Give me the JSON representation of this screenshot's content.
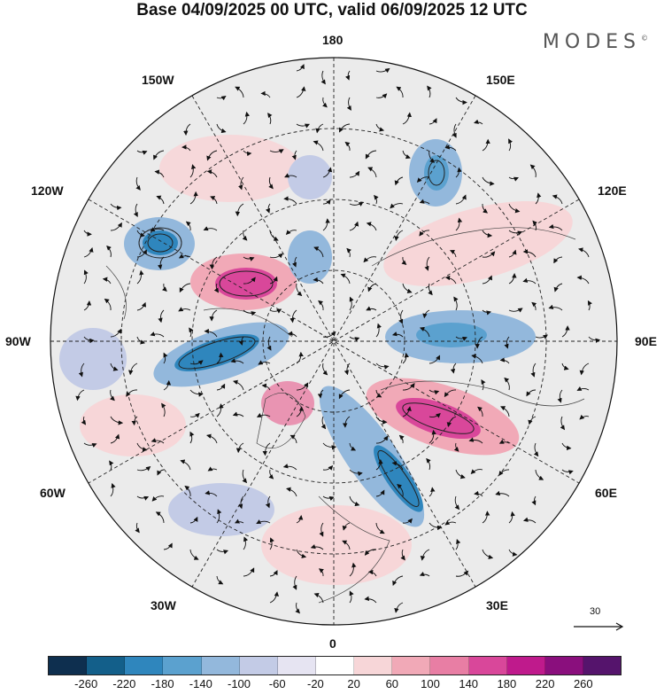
{
  "title": "Base 04/09/2025 00 UTC, valid 06/09/2025 12 UTC",
  "brand": "MODES",
  "brand_mark": "©",
  "longitude_labels": {
    "n180": "180",
    "w150": "150W",
    "e150": "150E",
    "w120": "120W",
    "e120": "120E",
    "w90": "90W",
    "e90": "90E",
    "w60": "60W",
    "e60": "60E",
    "w30": "30W",
    "e30": "30E",
    "s0": "0"
  },
  "reference_vector": {
    "value": "30"
  },
  "colorbar": {
    "ticks": [
      "-260",
      "-220",
      "-180",
      "-140",
      "-100",
      "-60",
      "-20",
      "20",
      "60",
      "100",
      "140",
      "180",
      "220",
      "260"
    ],
    "colors": [
      "#0e2f4f",
      "#135f8a",
      "#2f86bd",
      "#5ba1cf",
      "#93b8dc",
      "#c3cbe6",
      "#e6e4f2",
      "#ffffff",
      "#f7d6d8",
      "#f1a9b7",
      "#e87ea4",
      "#d9479a",
      "#bf1a8c",
      "#8a0f7d",
      "#55146c"
    ]
  },
  "anomalies": [
    {
      "id": "low-120w",
      "value": -180,
      "color": "#2f86bd"
    },
    {
      "id": "high-canada",
      "value": 180,
      "color": "#d9479a"
    },
    {
      "id": "low-hudson",
      "value": -180,
      "color": "#2f86bd"
    },
    {
      "id": "high-siberia",
      "value": 140,
      "color": "#e87ea4"
    },
    {
      "id": "low-scandinavia",
      "value": -180,
      "color": "#2f86bd"
    },
    {
      "id": "low-russia",
      "value": -100,
      "color": "#93b8dc"
    },
    {
      "id": "high-greenland",
      "value": 100,
      "color": "#f1a9b7"
    },
    {
      "id": "low-kamchatka",
      "value": -140,
      "color": "#5ba1cf"
    },
    {
      "id": "high-europe",
      "value": 60,
      "color": "#f7d6d8"
    }
  ]
}
